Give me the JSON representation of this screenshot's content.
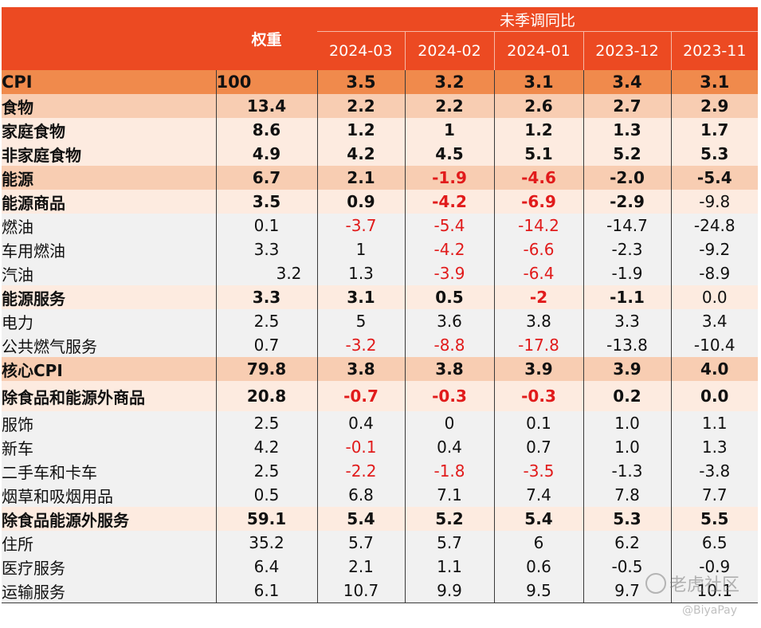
{
  "header": {
    "weight_label": "权重",
    "group_label": "未季调同比",
    "months": [
      "2024-03",
      "2024-02",
      "2024-01",
      "2023-12",
      "2023-11"
    ]
  },
  "rows": [
    {
      "name": "CPI",
      "level": 0,
      "weight": "100",
      "values": [
        "3.5",
        "3.2",
        "3.1",
        "3.4",
        "3.1"
      ],
      "neg": [
        false,
        false,
        false,
        false,
        false
      ]
    },
    {
      "name": "食物",
      "level": 1,
      "weight": "13.4",
      "values": [
        "2.2",
        "2.2",
        "2.6",
        "2.7",
        "2.9"
      ],
      "neg": [
        false,
        false,
        false,
        false,
        false
      ]
    },
    {
      "name": "家庭食物",
      "level": 2,
      "weight": "8.6",
      "values": [
        "1.2",
        "1",
        "1.2",
        "1.3",
        "1.7"
      ],
      "neg": [
        false,
        false,
        false,
        false,
        false
      ]
    },
    {
      "name": "非家庭食物",
      "level": 2,
      "weight": "4.9",
      "values": [
        "4.2",
        "4.5",
        "5.1",
        "5.2",
        "5.3"
      ],
      "neg": [
        false,
        false,
        false,
        false,
        false
      ]
    },
    {
      "name": "能源",
      "level": 1,
      "weight": "6.7",
      "values": [
        "2.1",
        "-1.9",
        "-4.6",
        "-2.0",
        "-5.4"
      ],
      "neg": [
        false,
        true,
        true,
        false,
        false
      ]
    },
    {
      "name": "能源商品",
      "level": 2,
      "weight": "3.5",
      "values": [
        "0.9",
        "-4.2",
        "-6.9",
        "-2.9",
        "-9.8"
      ],
      "neg": [
        false,
        true,
        true,
        false,
        false
      ],
      "last_plain": true
    },
    {
      "name": "燃油",
      "level": 3,
      "weight": "0.1",
      "values": [
        "-3.7",
        "-5.4",
        "-14.2",
        "-14.7",
        "-24.8"
      ],
      "neg": [
        true,
        true,
        true,
        false,
        false
      ]
    },
    {
      "name": "车用燃油",
      "level": 3,
      "weight": "3.3",
      "values": [
        "1",
        "-4.2",
        "-6.6",
        "-2.3",
        "-9.2"
      ],
      "neg": [
        false,
        true,
        true,
        false,
        false
      ]
    },
    {
      "name": "汽油",
      "level": 4,
      "weight": "3.2",
      "values": [
        "1.3",
        "-3.9",
        "-6.4",
        "-1.9",
        "-8.9"
      ],
      "neg": [
        false,
        true,
        true,
        false,
        false
      ]
    },
    {
      "name": "能源服务",
      "level": 2,
      "weight": "3.3",
      "values": [
        "3.1",
        "0.5",
        "-2",
        "-1.1",
        "0.0"
      ],
      "neg": [
        false,
        false,
        true,
        false,
        false
      ],
      "last_plain": true
    },
    {
      "name": "电力",
      "level": 3,
      "weight": "2.5",
      "values": [
        "5",
        "3.6",
        "3.8",
        "3.3",
        "3.4"
      ],
      "neg": [
        false,
        false,
        false,
        false,
        false
      ]
    },
    {
      "name": "公共燃气服务",
      "level": 3,
      "weight": "0.7",
      "values": [
        "-3.2",
        "-8.8",
        "-17.8",
        "-13.8",
        "-10.4"
      ],
      "neg": [
        true,
        true,
        true,
        false,
        false
      ]
    },
    {
      "name": "核心CPI",
      "level": 1,
      "weight": "79.8",
      "values": [
        "3.8",
        "3.8",
        "3.9",
        "3.9",
        "4.0"
      ],
      "neg": [
        false,
        false,
        false,
        false,
        false
      ]
    },
    {
      "name": "除食品和能源外商品",
      "level": 2,
      "weight": "20.8",
      "values": [
        "-0.7",
        "-0.3",
        "-0.3",
        "0.2",
        "0.0"
      ],
      "neg": [
        true,
        true,
        true,
        false,
        false
      ],
      "tall": true
    },
    {
      "name": "服饰",
      "level": 3,
      "weight": "2.5",
      "values": [
        "0.4",
        "0",
        "0.1",
        "1.0",
        "1.1"
      ],
      "neg": [
        false,
        false,
        false,
        false,
        false
      ]
    },
    {
      "name": "新车",
      "level": 3,
      "weight": "4.2",
      "values": [
        "-0.1",
        "0.4",
        "0.7",
        "1.0",
        "1.3"
      ],
      "neg": [
        true,
        false,
        false,
        false,
        false
      ]
    },
    {
      "name": "二手车和卡车",
      "level": 3,
      "weight": "2.5",
      "values": [
        "-2.2",
        "-1.8",
        "-3.5",
        "-1.3",
        "-3.8"
      ],
      "neg": [
        true,
        true,
        true,
        false,
        false
      ]
    },
    {
      "name": "烟草和吸烟用品",
      "level": 3,
      "weight": "0.5",
      "values": [
        "6.8",
        "7.1",
        "7.4",
        "7.8",
        "7.7"
      ],
      "neg": [
        false,
        false,
        false,
        false,
        false
      ]
    },
    {
      "name": "除食品能源外服务",
      "level": 2,
      "weight": "59.1",
      "values": [
        "5.4",
        "5.2",
        "5.4",
        "5.3",
        "5.5"
      ],
      "neg": [
        false,
        false,
        false,
        false,
        false
      ]
    },
    {
      "name": "住所",
      "level": 3,
      "weight": "35.2",
      "values": [
        "5.7",
        "5.7",
        "6",
        "6.2",
        "6.5"
      ],
      "neg": [
        false,
        false,
        false,
        false,
        false
      ]
    },
    {
      "name": "医疗服务",
      "level": 3,
      "weight": "6.4",
      "values": [
        "2.1",
        "1.1",
        "0.6",
        "-0.5",
        "-0.9"
      ],
      "neg": [
        false,
        false,
        false,
        false,
        false
      ]
    },
    {
      "name": "运输服务",
      "level": 3,
      "weight": "6.1",
      "values": [
        "10.7",
        "9.9",
        "9.5",
        "9.7",
        "10.1"
      ],
      "neg": [
        false,
        false,
        false,
        false,
        false
      ]
    }
  ],
  "watermark": {
    "brand": "老虎社区",
    "handle": "@BiyaPay"
  }
}
